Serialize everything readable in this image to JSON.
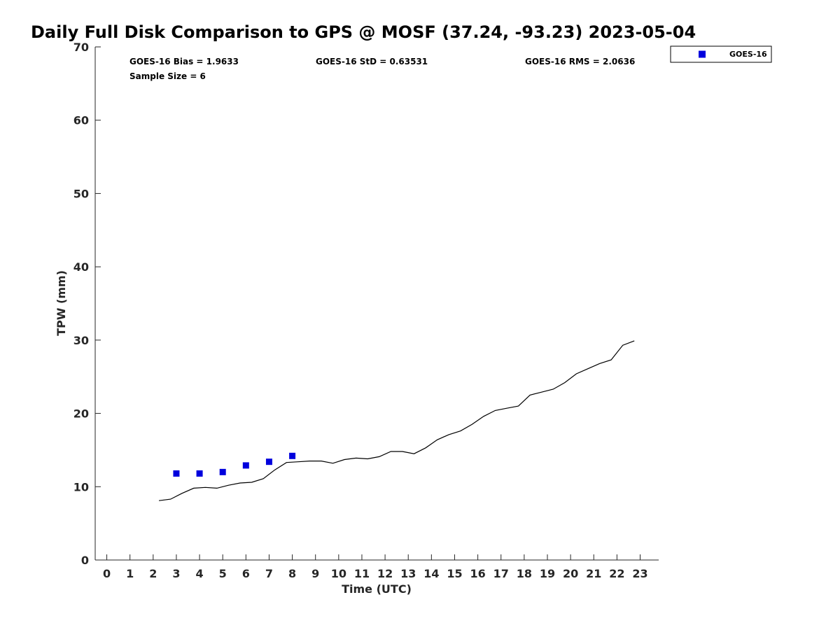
{
  "chart_data": {
    "type": "scatter",
    "title": "Daily Full Disk Comparison to GPS @ MOSF (37.24, -93.23) 2023-05-04",
    "xlabel": "Time (UTC)",
    "ylabel": "TPW (mm)",
    "xlim": [
      -0.5,
      23.8
    ],
    "ylim": [
      0,
      70
    ],
    "x_ticks": [
      "0",
      "1",
      "2",
      "3",
      "4",
      "5",
      "6",
      "7",
      "8",
      "9",
      "10",
      "11",
      "12",
      "13",
      "14",
      "15",
      "16",
      "17",
      "18",
      "19",
      "20",
      "21",
      "22",
      "23"
    ],
    "y_ticks": [
      "0",
      "10",
      "20",
      "30",
      "40",
      "50",
      "60",
      "70"
    ],
    "stats": {
      "bias": "GOES-16 Bias = 1.9633",
      "std": "GOES-16 StD = 0.63531",
      "rms": "GOES-16 RMS = 2.0636",
      "sample": "Sample Size = 6"
    },
    "legend": {
      "label": "GOES-16",
      "position": "top-right"
    },
    "series": [
      {
        "name": "GOES-16",
        "kind": "scatter",
        "color": "#0000dd",
        "x": [
          3,
          4,
          5,
          6,
          7,
          8
        ],
        "y": [
          11.8,
          11.8,
          12.0,
          12.9,
          13.4,
          14.2
        ]
      },
      {
        "name": "GPS",
        "kind": "line",
        "color": "#000000",
        "x": [
          2.25,
          2.75,
          3.25,
          3.75,
          4.25,
          4.75,
          5.25,
          5.75,
          6.25,
          6.75,
          7.25,
          7.75,
          8.25,
          8.75,
          9.25,
          9.75,
          10.25,
          10.75,
          11.25,
          11.75,
          12.25,
          12.75,
          13.25,
          13.75,
          14.25,
          14.75,
          15.25,
          15.75,
          16.25,
          16.75,
          17.25,
          17.75,
          18.25,
          18.75,
          19.25,
          19.75,
          20.25,
          20.75,
          21.25,
          21.75,
          22.25,
          22.75
        ],
        "y": [
          8.1,
          8.3,
          9.1,
          9.8,
          9.9,
          9.8,
          10.2,
          10.5,
          10.6,
          11.1,
          12.3,
          13.3,
          13.4,
          13.5,
          13.5,
          13.2,
          13.7,
          13.9,
          13.8,
          14.1,
          14.8,
          14.8,
          14.5,
          15.3,
          16.4,
          17.1,
          17.6,
          18.5,
          19.6,
          20.4,
          20.7,
          21.0,
          22.5,
          22.9,
          23.3,
          24.2,
          25.4,
          26.1,
          26.8,
          27.3,
          29.3,
          29.9
        ]
      }
    ]
  }
}
